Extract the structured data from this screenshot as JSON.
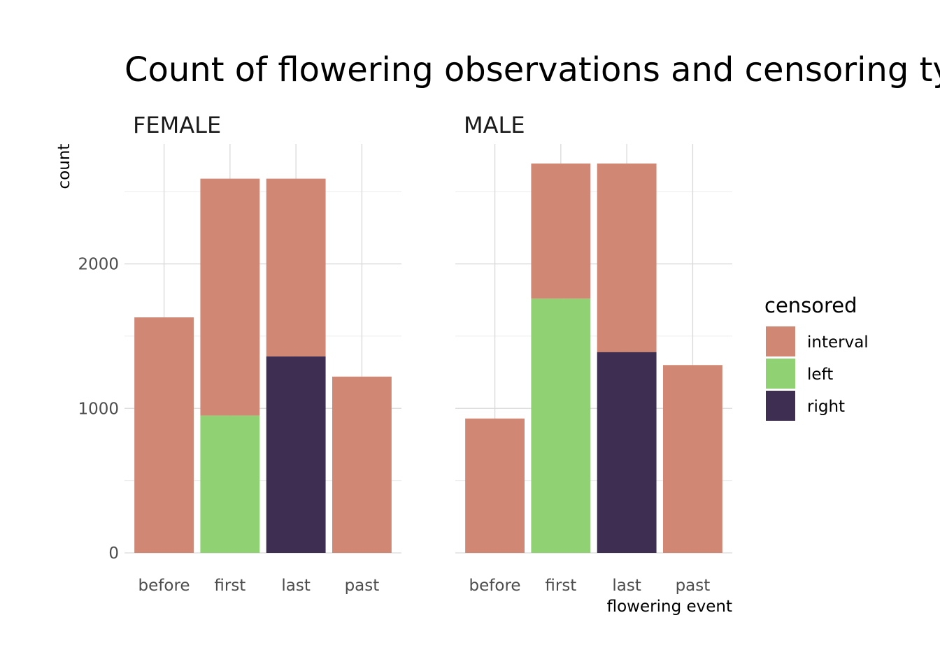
{
  "chart_data": {
    "type": "bar",
    "stacked": true,
    "title": "Count of flowering observations and censoring types",
    "xlabel": "flowering event",
    "ylabel": "count",
    "ylim": [
      0,
      2830
    ],
    "yticks": [
      0,
      1000,
      2000
    ],
    "grid": true,
    "legend": {
      "title": "censored",
      "position": "right",
      "entries": [
        {
          "key": "interval",
          "label": "interval",
          "color": "#D08875"
        },
        {
          "key": "left",
          "label": "left",
          "color": "#8FD173"
        },
        {
          "key": "right",
          "label": "right",
          "color": "#3E2F52"
        }
      ]
    },
    "categories": [
      "before",
      "first",
      "last",
      "past"
    ],
    "facets": [
      {
        "label": "FEMALE",
        "bars": [
          {
            "category": "before",
            "segments": [
              {
                "key": "interval",
                "value": 1630
              }
            ]
          },
          {
            "category": "first",
            "segments": [
              {
                "key": "left",
                "value": 950
              },
              {
                "key": "interval",
                "value": 1640
              }
            ]
          },
          {
            "category": "last",
            "segments": [
              {
                "key": "right",
                "value": 1360
              },
              {
                "key": "interval",
                "value": 1230
              }
            ]
          },
          {
            "category": "past",
            "segments": [
              {
                "key": "interval",
                "value": 1220
              }
            ]
          }
        ]
      },
      {
        "label": "MALE",
        "bars": [
          {
            "category": "before",
            "segments": [
              {
                "key": "interval",
                "value": 930
              }
            ]
          },
          {
            "category": "first",
            "segments": [
              {
                "key": "left",
                "value": 1760
              },
              {
                "key": "interval",
                "value": 935
              }
            ]
          },
          {
            "category": "last",
            "segments": [
              {
                "key": "right",
                "value": 1390
              },
              {
                "key": "interval",
                "value": 1305
              }
            ]
          },
          {
            "category": "past",
            "segments": [
              {
                "key": "interval",
                "value": 1300
              }
            ]
          }
        ]
      }
    ]
  }
}
